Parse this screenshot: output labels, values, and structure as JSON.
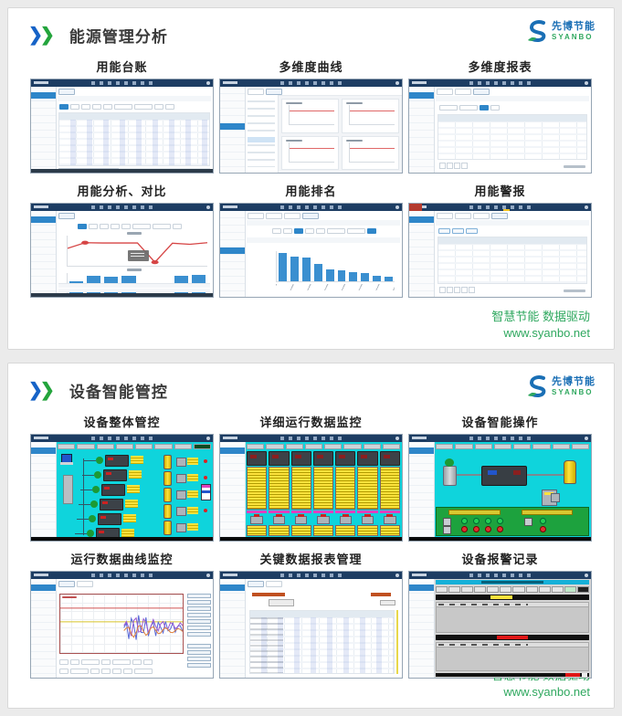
{
  "brand": {
    "cn": "先博节能",
    "en": "SYANBO"
  },
  "colors": {
    "accent_blue": "#1663c7",
    "accent_green": "#23a43c",
    "footer_green": "#2fa85f",
    "navy_topbar": "#1d3d63",
    "scada_cyan": "#0fd4dc",
    "bar_blue": "#3a8fd0",
    "line_red": "#d64545",
    "alarm_red": "#e01515",
    "warn_yellow": "#ffe33d"
  },
  "panels": [
    {
      "title": "能源管理分析",
      "thumbs": [
        {
          "title": "用能台账"
        },
        {
          "title": "多维度曲线"
        },
        {
          "title": "多维度报表"
        },
        {
          "title": "用能分析、对比"
        },
        {
          "title": "用能排名"
        },
        {
          "title": "用能警报"
        }
      ],
      "footer": {
        "line1": "智慧节能 数据驱动",
        "line2": "www.syanbo.net"
      }
    },
    {
      "title": "设备智能管控",
      "thumbs": [
        {
          "title": "设备整体管控"
        },
        {
          "title": "详细运行数据监控"
        },
        {
          "title": "设备智能操作"
        },
        {
          "title": "运行数据曲线监控"
        },
        {
          "title": "关键数据报表管理"
        },
        {
          "title": "设备报警记录"
        }
      ],
      "footer": {
        "line1": "智慧节能 数据驱动",
        "line2": "www.syanbo.net"
      }
    }
  ],
  "charts": {
    "comparison_line": {
      "values": [
        62,
        84,
        83,
        83,
        83,
        8,
        82,
        78,
        84
      ],
      "marker_indices": [
        1,
        5
      ]
    },
    "comparison_bars": {
      "values": [
        58,
        86,
        82,
        86,
        0,
        0,
        86,
        90
      ]
    },
    "ranking_bars": {
      "values": [
        95,
        82,
        78,
        57,
        38,
        36,
        31,
        27,
        18,
        15
      ]
    },
    "trend_series": [
      {
        "color": "#d05050",
        "base": 14,
        "amp": 0,
        "freq": 0
      },
      {
        "color": "#d6c428",
        "base": 28,
        "amp": 0,
        "freq": 0
      },
      {
        "color": "#5868d6",
        "base": 34,
        "amp": 20,
        "freq": 1.15
      },
      {
        "color": "#9b59d0",
        "base": 32,
        "amp": 14,
        "freq": 0.85
      },
      {
        "color": "#e0813a",
        "base": 37,
        "amp": 9,
        "freq": 0.6
      }
    ]
  }
}
